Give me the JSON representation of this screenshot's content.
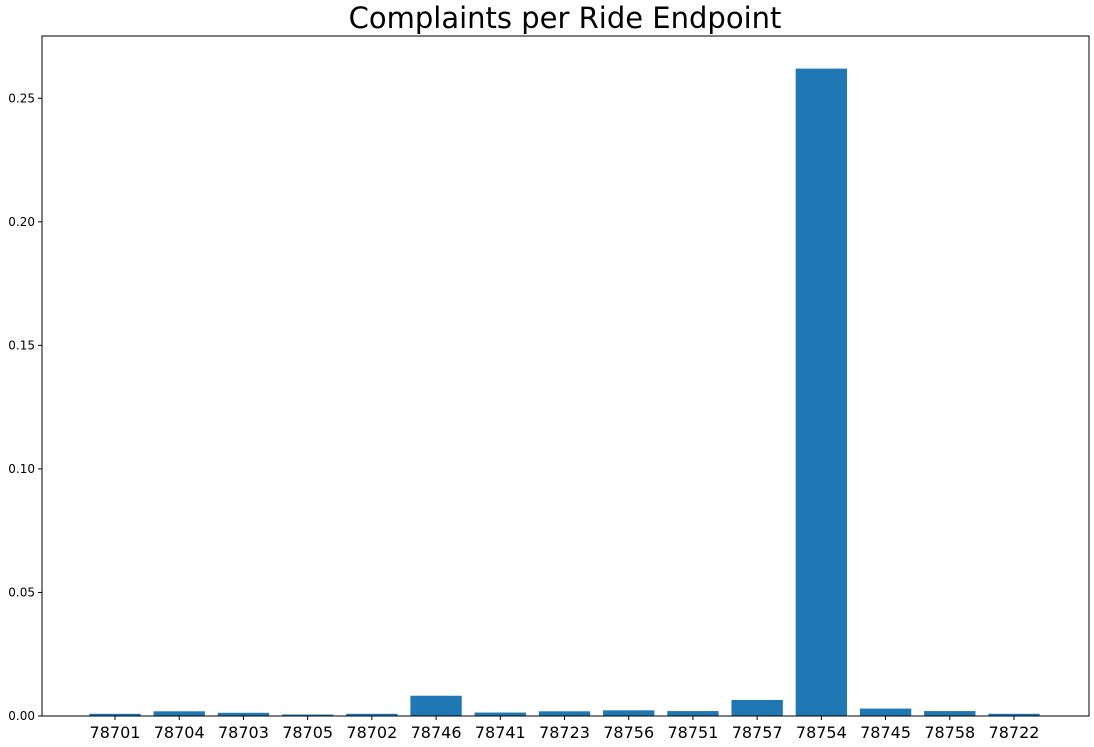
{
  "chart_data": {
    "type": "bar",
    "title": "Complaints per Ride Endpoint",
    "xlabel": "",
    "ylabel": "",
    "categories": [
      "78701",
      "78704",
      "78703",
      "78705",
      "78702",
      "78746",
      "78741",
      "78723",
      "78756",
      "78751",
      "78757",
      "78754",
      "78745",
      "78758",
      "78722"
    ],
    "values": [
      0.0009,
      0.0019,
      0.0013,
      0.0006,
      0.0009,
      0.0082,
      0.0014,
      0.0019,
      0.0023,
      0.002,
      0.0065,
      0.262,
      0.003,
      0.002,
      0.0009
    ],
    "ylim": [
      0,
      0.2752
    ],
    "yticks": [
      0.0,
      0.05,
      0.1,
      0.15,
      0.2,
      0.25
    ],
    "ytick_labels": [
      "0.00",
      "0.05",
      "0.10",
      "0.15",
      "0.20",
      "0.25"
    ],
    "grid": false,
    "bar_color": "#1f77b4"
  }
}
